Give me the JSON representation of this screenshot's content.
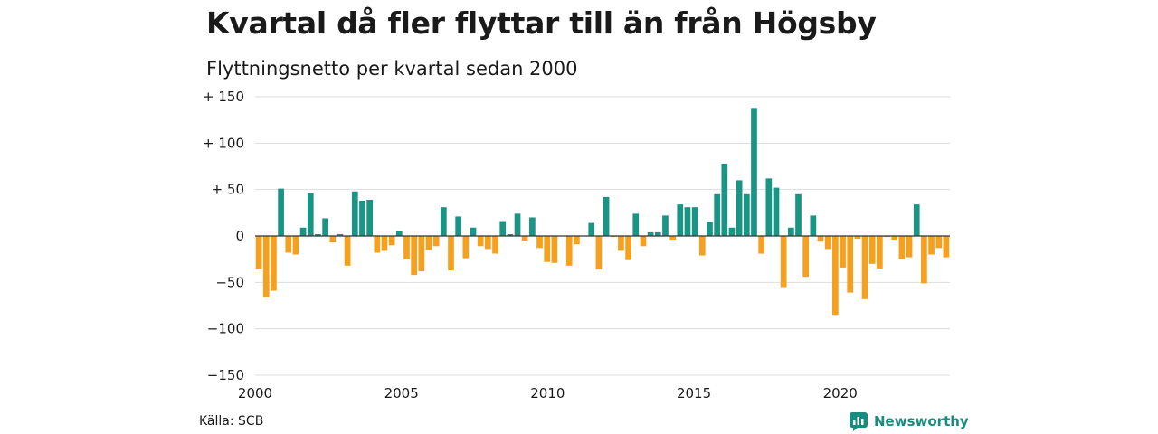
{
  "title": "Kvartal då fler flyttar till än från Högsby",
  "subtitle": "Flyttningsnetto per kvartal sedan 2000",
  "source": "Källa: SCB",
  "brand": {
    "name": "Newsworthy",
    "icon": "newsworthy-logo-icon"
  },
  "colors": {
    "positive": "#1a9485",
    "negative": "#f5a01e",
    "grid": "#dddddd",
    "zero": "#333333",
    "brand": "#1a8c7f"
  },
  "chart_data": {
    "type": "bar",
    "title": "Flyttningsnetto per kvartal sedan 2000",
    "xlabel": "",
    "ylabel": "",
    "ylim": [
      -150,
      150
    ],
    "xlim": [
      2000,
      2023.75
    ],
    "y_ticks": [
      {
        "value": 150,
        "label": "+ 150"
      },
      {
        "value": 100,
        "label": "+ 100"
      },
      {
        "value": 50,
        "label": "+  50"
      },
      {
        "value": 0,
        "label": "0"
      },
      {
        "value": -50,
        "label": "−50"
      },
      {
        "value": -100,
        "label": "−100"
      },
      {
        "value": -150,
        "label": "−150"
      }
    ],
    "x_ticks": [
      {
        "value": 2000,
        "label": "2000"
      },
      {
        "value": 2005,
        "label": "2005"
      },
      {
        "value": 2010,
        "label": "2010"
      },
      {
        "value": 2015,
        "label": "2015"
      },
      {
        "value": 2020,
        "label": "2020"
      }
    ],
    "grid": true,
    "legend": "none",
    "start_year": 2000,
    "values": [
      -36,
      -66,
      -59,
      51,
      -18,
      -20,
      9,
      46,
      2,
      19,
      -7,
      2,
      -32,
      48,
      38,
      39,
      -18,
      -16,
      -10,
      5,
      -25,
      -42,
      -38,
      -15,
      -11,
      31,
      -37,
      21,
      -24,
      9,
      -11,
      -14,
      -19,
      16,
      2,
      24,
      -5,
      20,
      -13,
      -28,
      -29,
      0,
      -32,
      -9,
      0,
      14,
      -36,
      42,
      -1,
      -16,
      -26,
      24,
      -11,
      4,
      4,
      22,
      -4,
      34,
      31,
      31,
      -21,
      15,
      45,
      78,
      9,
      60,
      45,
      138,
      -19,
      62,
      52,
      -55,
      9,
      45,
      -44,
      22,
      -6,
      -14,
      -85,
      -34,
      -61,
      -3,
      -68,
      -30,
      -35,
      -1,
      -4,
      -25,
      -23,
      34,
      -51,
      -20,
      -13,
      -23
    ]
  }
}
